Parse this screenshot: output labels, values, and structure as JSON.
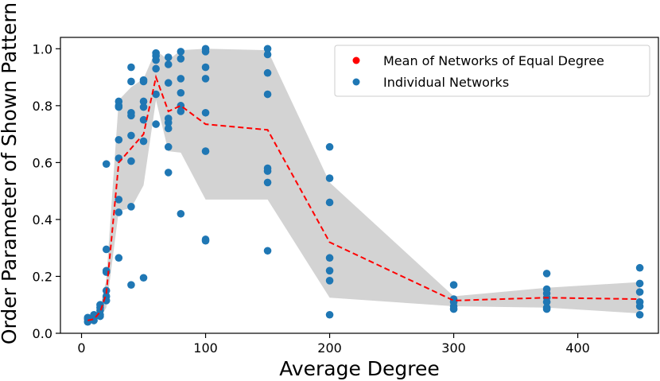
{
  "chart_data": {
    "type": "scatter",
    "title": "",
    "xlabel": "Average Degree",
    "ylabel": "Order Parameter of Shown Pattern",
    "xlim": [
      -17,
      465
    ],
    "ylim": [
      0.0,
      1.04
    ],
    "xticks": [
      0,
      100,
      200,
      300,
      400
    ],
    "yticks": [
      0.0,
      0.2,
      0.4,
      0.6,
      0.8,
      1.0
    ],
    "xtick_labels": [
      "0",
      "100",
      "200",
      "300",
      "400"
    ],
    "ytick_labels": [
      "0.0",
      "0.2",
      "0.4",
      "0.6",
      "0.8",
      "1.0"
    ],
    "grid": false,
    "legend_position": "top-right",
    "legend": {
      "mean": "Mean of Networks of Equal Degree",
      "individual": "Individual Networks"
    },
    "colors": {
      "points": "#1f77b4",
      "mean_line": "#ff0000",
      "band": "#d3d3d3",
      "axes": "#000000"
    },
    "band": {
      "x": [
        5,
        10,
        15,
        20,
        30,
        40,
        50,
        60,
        70,
        80,
        100,
        150,
        200,
        300,
        375,
        450
      ],
      "upper": [
        0.055,
        0.06,
        0.09,
        0.19,
        0.82,
        0.865,
        0.895,
        0.995,
        0.96,
        0.995,
        1.0,
        0.995,
        0.53,
        0.13,
        0.16,
        0.18
      ],
      "lower": [
        0.035,
        0.04,
        0.055,
        0.09,
        0.43,
        0.44,
        0.52,
        0.82,
        0.64,
        0.635,
        0.47,
        0.47,
        0.125,
        0.095,
        0.09,
        0.07
      ]
    },
    "series": [
      {
        "name": "Mean of Networks of Equal Degree",
        "x": [
          5,
          10,
          15,
          20,
          30,
          40,
          50,
          60,
          70,
          80,
          100,
          150,
          200,
          300,
          375,
          450
        ],
        "y": [
          0.045,
          0.05,
          0.075,
          0.14,
          0.6,
          0.65,
          0.7,
          0.9,
          0.78,
          0.8,
          0.735,
          0.715,
          0.32,
          0.115,
          0.125,
          0.12
        ]
      },
      {
        "name": "Individual Networks",
        "x": [
          5,
          5,
          5,
          10,
          10,
          10,
          15,
          15,
          15,
          15,
          15,
          20,
          20,
          20,
          20,
          20,
          20,
          20,
          30,
          30,
          30,
          30,
          30,
          30,
          30,
          30,
          40,
          40,
          40,
          40,
          40,
          40,
          40,
          40,
          50,
          50,
          50,
          50,
          50,
          50,
          50,
          60,
          60,
          60,
          60,
          60,
          60,
          70,
          70,
          70,
          70,
          70,
          70,
          70,
          70,
          80,
          80,
          80,
          80,
          80,
          80,
          80,
          100,
          100,
          100,
          100,
          100,
          100,
          100,
          100,
          150,
          150,
          150,
          150,
          150,
          150,
          150,
          150,
          200,
          200,
          200,
          200,
          200,
          200,
          200,
          300,
          300,
          300,
          300,
          300,
          375,
          375,
          375,
          375,
          375,
          375,
          375,
          450,
          450,
          450,
          450,
          450,
          450
        ],
        "y": [
          0.04,
          0.05,
          0.055,
          0.045,
          0.055,
          0.065,
          0.06,
          0.08,
          0.09,
          0.1,
          0.065,
          0.595,
          0.295,
          0.22,
          0.215,
          0.15,
          0.13,
          0.115,
          0.815,
          0.8,
          0.795,
          0.68,
          0.615,
          0.47,
          0.425,
          0.265,
          0.935,
          0.885,
          0.775,
          0.765,
          0.695,
          0.605,
          0.445,
          0.17,
          0.89,
          0.885,
          0.815,
          0.795,
          0.75,
          0.675,
          0.195,
          0.985,
          0.975,
          0.96,
          0.93,
          0.84,
          0.735,
          0.97,
          0.945,
          0.88,
          0.755,
          0.74,
          0.72,
          0.655,
          0.565,
          0.99,
          0.965,
          0.895,
          0.845,
          0.8,
          0.78,
          0.42,
          1.0,
          0.99,
          0.935,
          0.895,
          0.775,
          0.64,
          0.33,
          0.325,
          1.0,
          0.98,
          0.915,
          0.84,
          0.58,
          0.57,
          0.53,
          0.29,
          0.655,
          0.545,
          0.46,
          0.265,
          0.22,
          0.185,
          0.065,
          0.17,
          0.12,
          0.11,
          0.095,
          0.085,
          0.21,
          0.155,
          0.14,
          0.125,
          0.11,
          0.09,
          0.085,
          0.23,
          0.175,
          0.145,
          0.11,
          0.095,
          0.065
        ]
      }
    ]
  }
}
